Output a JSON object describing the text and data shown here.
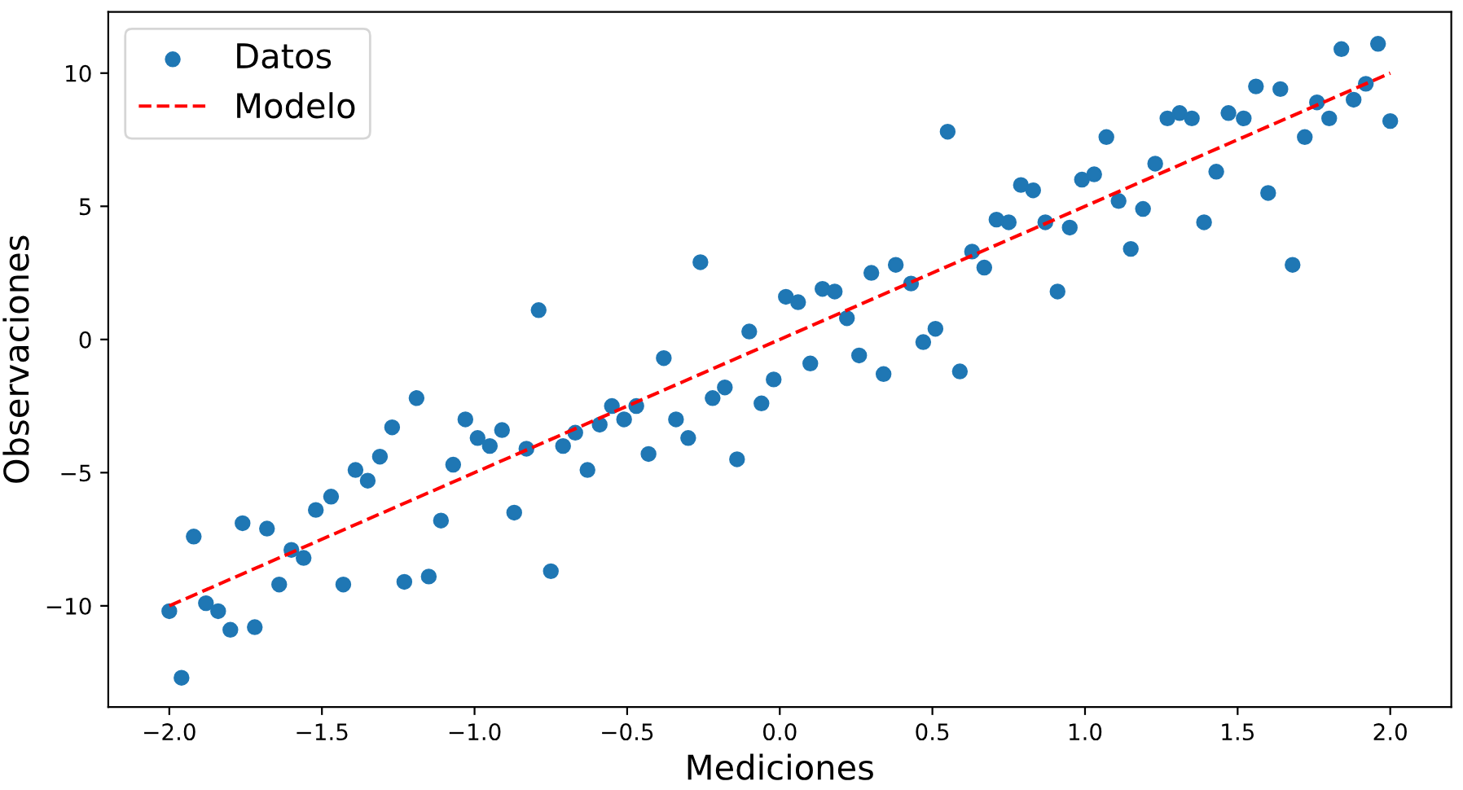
{
  "chart_data": {
    "type": "scatter",
    "xlabel": "Mediciones",
    "ylabel": "Observaciones",
    "series": [
      {
        "name": "Datos",
        "color": "#1f77b4",
        "marker": "circle",
        "x": [
          -2.0,
          -1.96,
          -1.92,
          -1.88,
          -1.84,
          -1.8,
          -1.76,
          -1.72,
          -1.68,
          -1.64,
          -1.6,
          -1.56,
          -1.52,
          -1.47,
          -1.43,
          -1.39,
          -1.35,
          -1.31,
          -1.27,
          -1.23,
          -1.19,
          -1.15,
          -1.11,
          -1.07,
          -1.03,
          -0.99,
          -0.95,
          -0.91,
          -0.87,
          -0.83,
          -0.79,
          -0.75,
          -0.71,
          -0.67,
          -0.63,
          -0.59,
          -0.55,
          -0.51,
          -0.47,
          -0.43,
          -0.38,
          -0.34,
          -0.3,
          -0.26,
          -0.22,
          -0.18,
          -0.14,
          -0.1,
          -0.06,
          -0.02,
          0.02,
          0.06,
          0.1,
          0.14,
          0.18,
          0.22,
          0.26,
          0.3,
          0.34,
          0.38,
          0.43,
          0.47,
          0.51,
          0.55,
          0.59,
          0.63,
          0.67,
          0.71,
          0.75,
          0.79,
          0.83,
          0.87,
          0.91,
          0.95,
          0.99,
          1.03,
          1.07,
          1.11,
          1.15,
          1.19,
          1.23,
          1.27,
          1.31,
          1.35,
          1.39,
          1.43,
          1.47,
          1.52,
          1.56,
          1.6,
          1.64,
          1.68,
          1.72,
          1.76,
          1.8,
          1.84,
          1.88,
          1.92,
          1.96,
          2.0
        ],
        "values": [
          -10.2,
          -12.7,
          -7.4,
          -9.9,
          -10.2,
          -10.9,
          -6.9,
          -10.8,
          -7.1,
          -9.2,
          -7.9,
          -8.2,
          -6.4,
          -5.9,
          -9.2,
          -4.9,
          -5.3,
          -4.4,
          -3.3,
          -9.1,
          -2.2,
          -8.9,
          -6.8,
          -4.7,
          -3.0,
          -3.7,
          -4.0,
          -3.4,
          -6.5,
          -4.1,
          1.1,
          -8.7,
          -4.0,
          -3.5,
          -4.9,
          -3.2,
          -2.5,
          -3.0,
          -2.5,
          -4.3,
          -0.7,
          -3.0,
          -3.7,
          2.9,
          -2.2,
          -1.8,
          -4.5,
          0.3,
          -2.4,
          -1.5,
          1.6,
          1.4,
          -0.9,
          1.9,
          1.8,
          0.8,
          -0.6,
          2.5,
          -1.3,
          2.8,
          2.1,
          -0.1,
          0.4,
          7.8,
          -1.2,
          3.3,
          2.7,
          4.5,
          4.4,
          5.8,
          5.6,
          4.4,
          1.8,
          4.2,
          6.0,
          6.2,
          7.6,
          5.2,
          3.4,
          4.9,
          6.6,
          8.3,
          8.5,
          8.3,
          4.4,
          6.3,
          8.5,
          8.3,
          9.5,
          5.5,
          9.4,
          2.8,
          7.6,
          8.9,
          8.3,
          10.9,
          9.0,
          9.6,
          11.1,
          8.2
        ]
      },
      {
        "name": "Modelo",
        "type": "line",
        "color": "#ff0000",
        "line_style": "dashed",
        "marker": "none",
        "x": [
          -2.0,
          2.0
        ],
        "values": [
          -10,
          10
        ]
      }
    ],
    "xlim": [
      -2.2,
      2.2
    ],
    "xticks": [
      {
        "value": -2.0,
        "label": "−2.0"
      },
      {
        "value": -1.5,
        "label": "−1.5"
      },
      {
        "value": -1.0,
        "label": "−1.0"
      },
      {
        "value": -0.5,
        "label": "−0.5"
      },
      {
        "value": 0.0,
        "label": "0.0"
      },
      {
        "value": 0.5,
        "label": "0.5"
      },
      {
        "value": 1.0,
        "label": "1.0"
      },
      {
        "value": 1.5,
        "label": "1.5"
      },
      {
        "value": 2.0,
        "label": "2.0"
      }
    ],
    "ylim": [
      -13.8,
      12.3
    ],
    "yticks": [
      {
        "value": -10,
        "label": "−10"
      },
      {
        "value": -5,
        "label": "−5"
      },
      0,
      5,
      10
    ],
    "grid": false,
    "legend": "top left"
  }
}
